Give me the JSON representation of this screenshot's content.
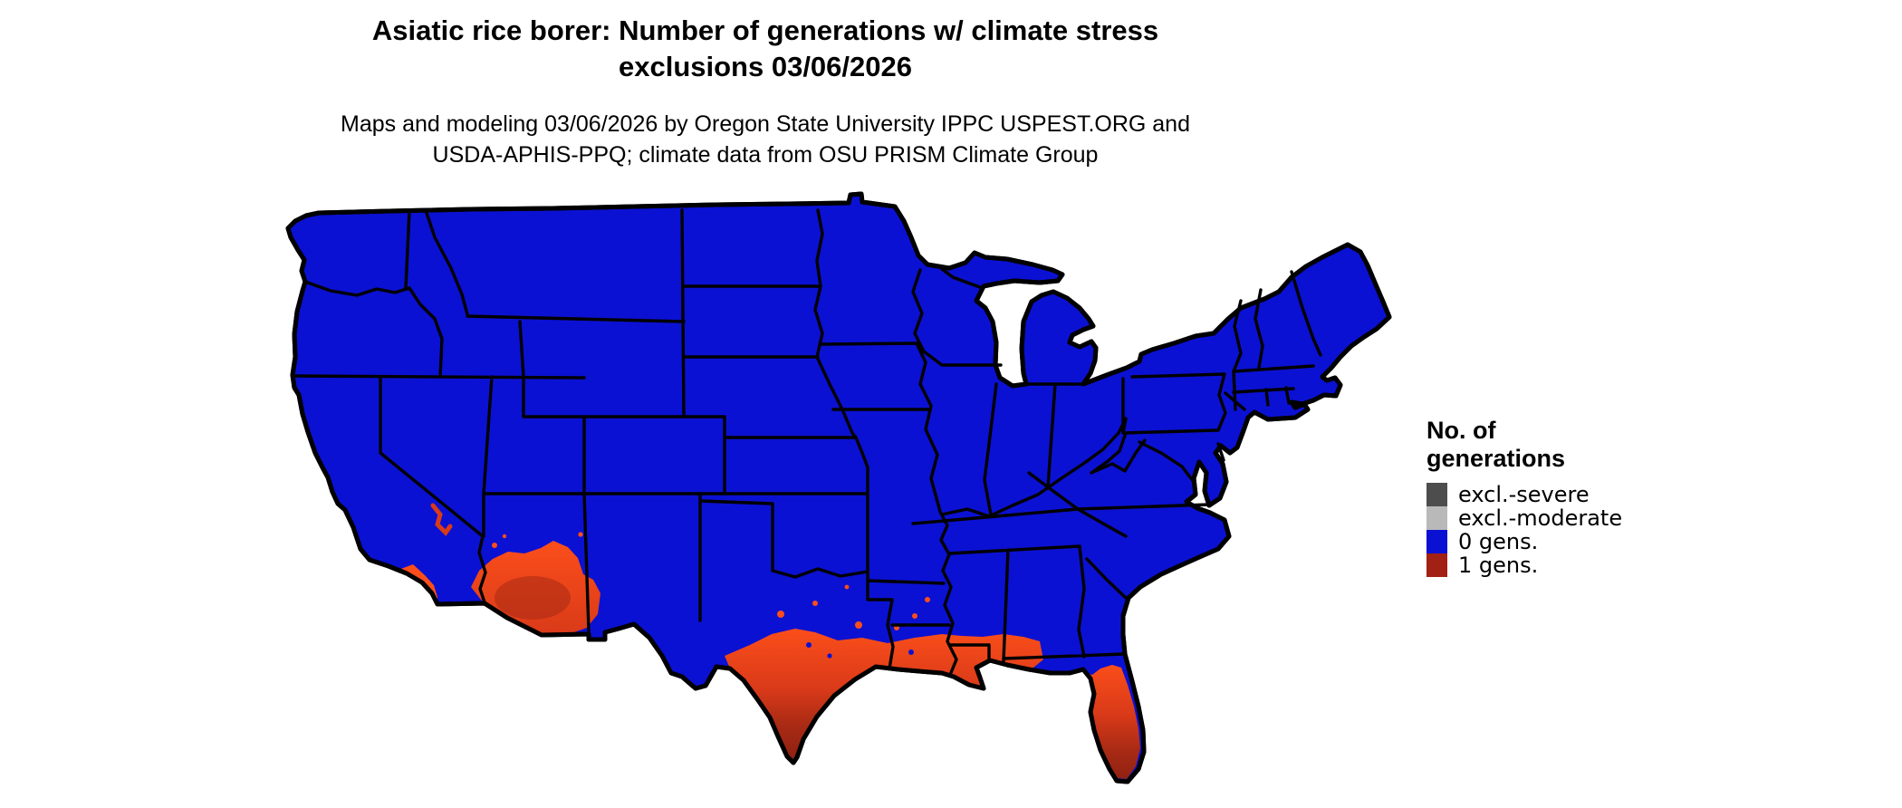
{
  "header": {
    "title_line1": "Asiatic rice borer: Number of generations w/ climate stress",
    "title_line2": "exclusions 03/06/2026",
    "subtitle_line1": "Maps and modeling 03/06/2026 by Oregon State University IPPC USPEST.ORG and",
    "subtitle_line2": "USDA-APHIS-PPQ; climate data from OSU PRISM Climate Group"
  },
  "legend": {
    "title_line1": "No. of",
    "title_line2": "generations",
    "items": [
      {
        "label": "excl.-severe",
        "color": "#4d4d4d"
      },
      {
        "label": "excl.-moderate",
        "color": "#b9b9b9"
      },
      {
        "label": "0 gens.",
        "color": "#0b11d2"
      },
      {
        "label": "1 gens.",
        "color": "#a32015"
      }
    ]
  },
  "map": {
    "region": "Conterminous United States",
    "projection_style": "Albers-like state map",
    "dominant_class": "0 gens.",
    "palette": {
      "zero_gens": "#0b11d2",
      "hot_bright": "#fb4e1a",
      "hot_mid": "#d93a19",
      "hot_dark": "#a82a14",
      "hot_deep": "#8c2012",
      "border": "#000000",
      "water": "#ffffff"
    },
    "one_gen_regions": [
      "southern Texas and western Gulf Coast into coastal Louisiana and Mississippi",
      "Florida peninsula (orange north grading to dark red at the tip and Keys)",
      "southern Arizona deserts extending into southwest New Mexico",
      "southeastern California deserts and southern California coast"
    ]
  }
}
